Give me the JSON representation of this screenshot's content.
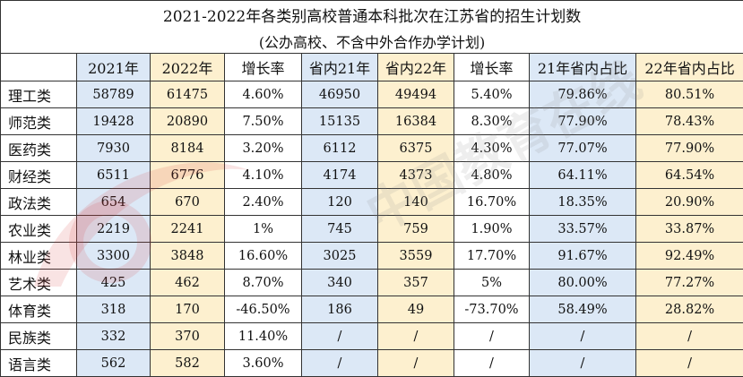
{
  "title": "2021-2022年各类别高校普通本科批次在江苏省的招生计划数",
  "subtitle": "(公办高校、不含中外合作办学计划)",
  "headers": [
    "",
    "2021年",
    "2022年",
    "增长率",
    "省内21年",
    "省内22年",
    "增长率",
    "21年省内占比",
    "22年省内占比"
  ],
  "rows": [
    {
      "name": "理工类",
      "cells": [
        "58789",
        "61475",
        "4.60%",
        "46950",
        "49494",
        "5.40%",
        "79.86%",
        "80.51%"
      ]
    },
    {
      "name": "师范类",
      "cells": [
        "19428",
        "20890",
        "7.50%",
        "15135",
        "16384",
        "8.30%",
        "77.90%",
        "78.43%"
      ]
    },
    {
      "name": "医药类",
      "cells": [
        "7930",
        "8184",
        "3.20%",
        "6112",
        "6375",
        "4.30%",
        "77.07%",
        "77.90%"
      ]
    },
    {
      "name": "财经类",
      "cells": [
        "6511",
        "6776",
        "4.10%",
        "4174",
        "4373",
        "4.80%",
        "64.11%",
        "64.54%"
      ]
    },
    {
      "name": "政法类",
      "cells": [
        "654",
        "670",
        "2.40%",
        "120",
        "140",
        "16.70%",
        "18.35%",
        "20.90%"
      ]
    },
    {
      "name": "农业类",
      "cells": [
        "2219",
        "2241",
        "1%",
        "745",
        "759",
        "1.90%",
        "33.57%",
        "33.87%"
      ]
    },
    {
      "name": "林业类",
      "cells": [
        "3300",
        "3848",
        "16.60%",
        "3025",
        "3559",
        "17.70%",
        "91.67%",
        "92.49%"
      ]
    },
    {
      "name": "艺术类",
      "cells": [
        "425",
        "462",
        "8.70%",
        "340",
        "357",
        "5%",
        "80.00%",
        "77.27%"
      ]
    },
    {
      "name": "体育类",
      "cells": [
        "318",
        "170",
        "-46.50%",
        "186",
        "49",
        "-73.70%",
        "58.49%",
        "28.82%"
      ]
    },
    {
      "name": "民族类",
      "cells": [
        "332",
        "370",
        "11.40%",
        "/",
        "/",
        "/",
        "/",
        "/"
      ]
    },
    {
      "name": "语言类",
      "cells": [
        "562",
        "582",
        "3.60%",
        "/",
        "/",
        "/",
        "/",
        "/"
      ]
    }
  ],
  "watermark": "中国教育在线",
  "colors": {
    "blue_col": "#dce8f6",
    "yellow_col": "#fdf0cf",
    "border": "#333333",
    "watermark_red": "#d23a3a"
  }
}
